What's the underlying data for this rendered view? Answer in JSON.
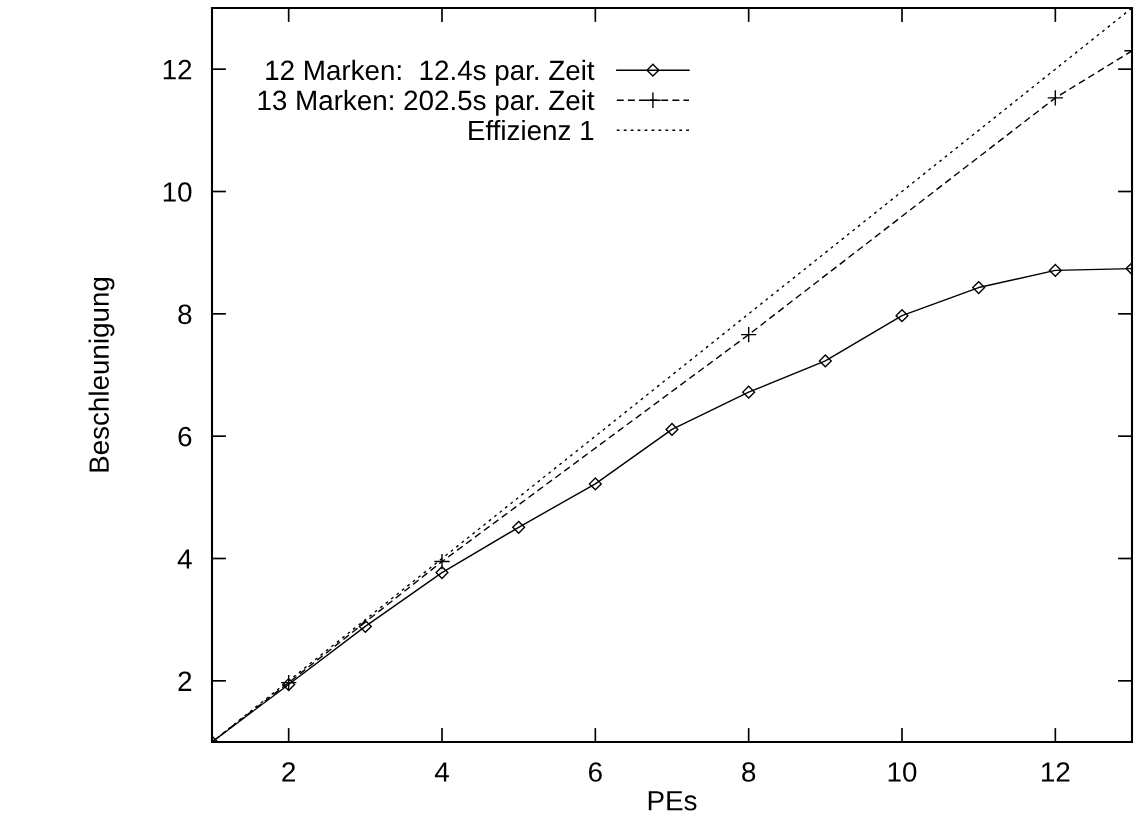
{
  "chart_data": {
    "type": "line",
    "xlabel": "PEs",
    "ylabel": "Beschleunigung",
    "xlim": [
      1,
      13
    ],
    "ylim": [
      1,
      13
    ],
    "xticks": [
      2,
      4,
      6,
      8,
      10,
      12
    ],
    "yticks": [
      2,
      4,
      6,
      8,
      10,
      12
    ],
    "grid": false,
    "legend": "top left",
    "series": [
      {
        "name": "12 Marken:  12.4s par. Zeit",
        "color": "#000000",
        "marker": "diamond",
        "line_style": "solid",
        "x": [
          1,
          2,
          3,
          4,
          5,
          6,
          7,
          8,
          9,
          10,
          11,
          12,
          13
        ],
        "values": [
          1,
          1.94,
          2.89,
          3.77,
          4.51,
          5.22,
          6.11,
          6.72,
          7.23,
          7.97,
          8.43,
          8.71,
          8.74
        ]
      },
      {
        "name": "13 Marken: 202.5s par. Zeit",
        "color": "#000000",
        "marker": "cross",
        "line_style": "dashed",
        "x": [
          1,
          2,
          4,
          8,
          12,
          13
        ],
        "values": [
          1,
          1.97,
          3.95,
          7.66,
          11.53,
          12.3
        ]
      },
      {
        "name": "Effizienz 1",
        "color": "#000000",
        "marker": "none",
        "line_style": "dotted",
        "x": [
          1,
          13
        ],
        "values": [
          1,
          13
        ]
      }
    ]
  }
}
